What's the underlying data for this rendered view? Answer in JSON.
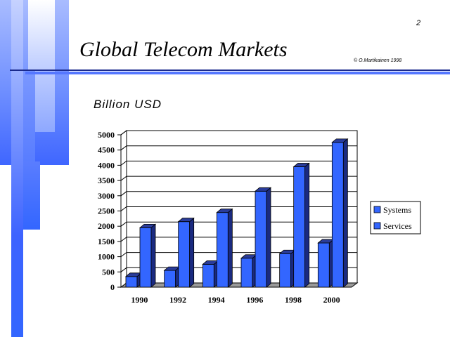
{
  "slide": {
    "number": "2",
    "title": "Global Telecom Markets",
    "copyright": "© O.Martikainen 1998"
  },
  "colors": {
    "bar_front": "#3366ff",
    "bar_side": "#1a2a80",
    "bar_top": "#2a3c9a",
    "deco_blue": "#3366ff",
    "title_rule": "#1a2a8c"
  },
  "chart_data": {
    "type": "bar",
    "title": "Billion USD",
    "categories": [
      "1990",
      "1992",
      "1994",
      "1996",
      "1998",
      "2000"
    ],
    "series": [
      {
        "name": "Systems",
        "values": [
          350,
          550,
          750,
          950,
          1100,
          1450
        ]
      },
      {
        "name": "Services",
        "values": [
          1950,
          2150,
          2450,
          3150,
          3950,
          4750
        ]
      }
    ],
    "y_ticks": [
      "0",
      "500",
      "1000",
      "1500",
      "2000",
      "2500",
      "3000",
      "3500",
      "4000",
      "4500",
      "5000"
    ],
    "ylim": [
      0,
      5000
    ],
    "grid": true,
    "three_d": true,
    "legend_position": "right"
  }
}
